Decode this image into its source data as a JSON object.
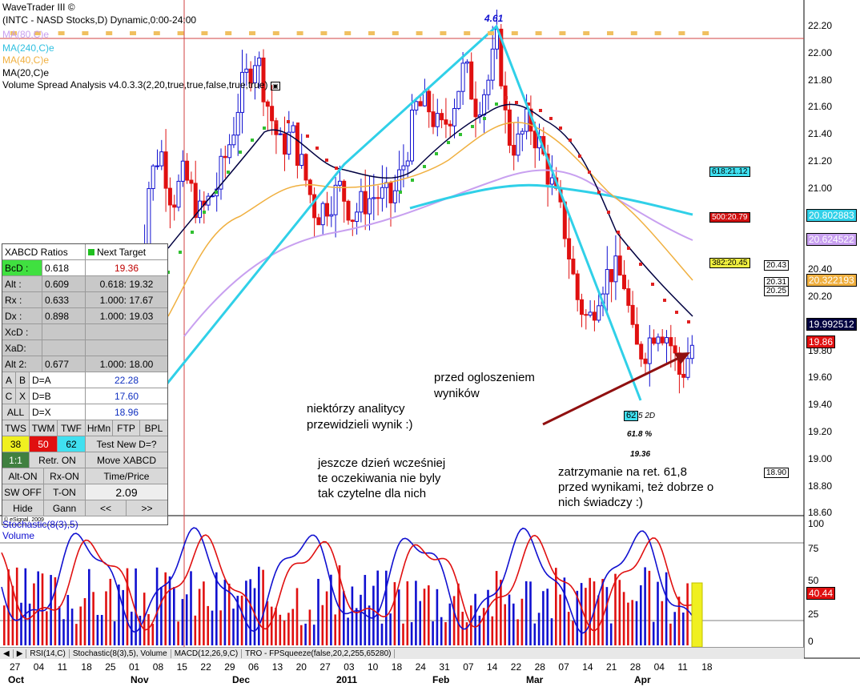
{
  "header": {
    "title": "WaveTrader III ©",
    "symbol": "(INTC - NASD Stocks,D) Dynamic,0:00-24:00",
    "ma1": "MA(80,C)e",
    "ma2": "MA(240,C)e",
    "ma3": "MA(40,C)e",
    "ma4": "MA(20,C)e",
    "vsa": "Volume Spread Analysis v4.0.3.3(2,20,true,true,false,true,true)"
  },
  "colors": {
    "bull": "#1010d0",
    "bear": "#e01010",
    "cyan": "#30d0e8",
    "ma80": "#c8a0f0",
    "ma40": "#f0b040",
    "ma20": "#000040",
    "stoch_k": "#1010d0",
    "stoch_d": "#e01010"
  },
  "price_axis": [
    "22.20",
    "22.00",
    "21.80",
    "21.60",
    "21.40",
    "21.20",
    "21.00",
    "20.80",
    "20.60",
    "20.40",
    "20.20",
    "20.00",
    "19.80",
    "19.60",
    "19.40",
    "19.20",
    "19.00",
    "18.80",
    "18.60"
  ],
  "price_tags": {
    "ma240": "20.802883",
    "ma80": "20.624522",
    "ma40": "20.322193",
    "ma20": "19.992512",
    "last": "19.86",
    "fib618": "618:21.12",
    "fib500": "500:20.79",
    "fib382": "382:20.45",
    "t1": "20.43",
    "t2": "20.31",
    "t3": "20.25",
    "t4": "18.90"
  },
  "chart_labels": {
    "peak": "4.61",
    "d_label": "62",
    "d_suffix": "5 2D",
    "pct": "61.8 %",
    "price": "19.36"
  },
  "panel": {
    "title": "XABCD Ratios",
    "next": "Next Target",
    "rows": [
      {
        "k": "BcD :",
        "v": "0.618",
        "t": "19.36"
      },
      {
        "k": "Alt  :",
        "v": "0.609",
        "t": "0.618: 19.32"
      },
      {
        "k": "Rx   :",
        "v": "0.633",
        "t": "1.000: 17.67"
      },
      {
        "k": "Dx   :",
        "v": "0.898",
        "t": "1.000: 19.03"
      },
      {
        "k": "XcD :",
        "v": "",
        "t": ""
      },
      {
        "k": "XaD:",
        "v": "",
        "t": ""
      },
      {
        "k": "Alt 2:",
        "v": "0.677",
        "t": "1.000: 18.00"
      }
    ],
    "abd": [
      {
        "a": "A",
        "b": "B",
        "c": "D=A",
        "v": "22.28"
      },
      {
        "a": "C",
        "b": "X",
        "c": "D=B",
        "v": "17.60"
      },
      {
        "a": "ALL",
        "b": "",
        "c": "D=X",
        "v": "18.96"
      }
    ],
    "tw": [
      "TWS",
      "TWM",
      "TWF",
      "HrMn",
      "FTP",
      "BPL"
    ],
    "tw_vals": [
      "38",
      "50",
      "62"
    ],
    "test_new": "Test New D=?",
    "one": "1:1",
    "retr": "Retr. ON",
    "move": "Move XABCD",
    "alt_on": "Alt-ON",
    "rx_on": "Rx-ON",
    "time_price": "Time/Price",
    "sw_off": "SW OFF",
    "t_on": "T-ON",
    "tp_val": "2.09",
    "hide": "Hide",
    "gann": "Gann",
    "prev": "<<",
    "next_btn": ">>",
    "copyright": "© eSignal, 2009"
  },
  "annotations": {
    "a1": "przed ogloszeniem",
    "a2": "wyników",
    "a3": "niektórzy analitycy",
    "a4": "przewidzieli wynik :)",
    "a5": "jeszcze dzień wcześniej",
    "a6": "te oczekiwania nie byly",
    "a7": "tak czytelne dla nich",
    "a8": "zatrzymanie na ret. 61,8",
    "a9": "przed wynikami, też dobrze o",
    "a10": "nich świadczy :)"
  },
  "lower": {
    "title": "Stochastic(8(3),5)",
    "vol": "Volume",
    "axis": [
      "100",
      "75",
      "50",
      "25",
      "0"
    ],
    "stoch_val": "40.44"
  },
  "tabs": [
    "RSI(14,C)",
    "Stochastic(8(3),5), Volume",
    "MACD(12,26,9,C)",
    "TRO - FPSqueeze(false,20,2,255,65280)"
  ],
  "x_days": [
    "27",
    "04",
    "11",
    "18",
    "25",
    "01",
    "08",
    "15",
    "22",
    "29",
    "06",
    "13",
    "20",
    "27",
    "03",
    "10",
    "18",
    "24",
    "31",
    "07",
    "14",
    "22",
    "28",
    "07",
    "14",
    "21",
    "28",
    "04",
    "11",
    "18"
  ],
  "x_months": [
    "Oct",
    "Nov",
    "Dec",
    "2011",
    "Feb",
    "Mar",
    "Apr"
  ]
}
